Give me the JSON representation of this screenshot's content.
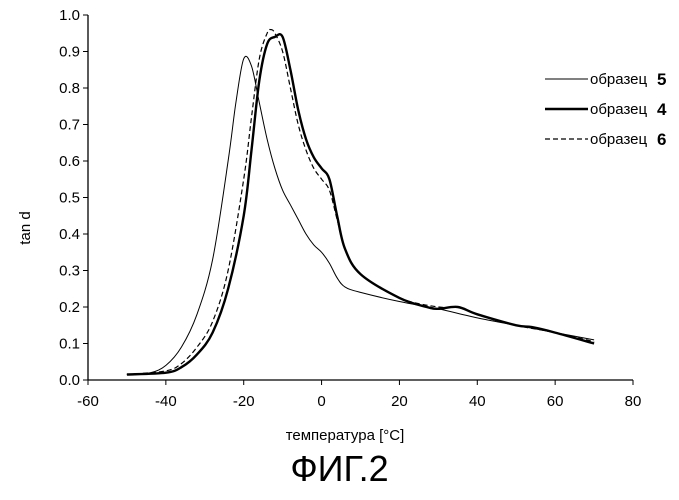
{
  "chart_data": {
    "type": "line",
    "xlabel": "температура [°C]",
    "ylabel": "tan d",
    "xlim": [
      -60,
      80
    ],
    "ylim": [
      0.0,
      1.0
    ],
    "x_ticks": [
      "-60",
      "-40",
      "-20",
      "0",
      "20",
      "40",
      "60",
      "80"
    ],
    "y_ticks": [
      "0.0",
      "0.1",
      "0.2",
      "0.3",
      "0.4",
      "0.5",
      "0.6",
      "0.7",
      "0.8",
      "0.9",
      "1.0"
    ],
    "grid": false,
    "legend_position": "top-right",
    "series": [
      {
        "name": "образец",
        "number": "5",
        "style": "thin",
        "color": "#000000",
        "x": [
          -50,
          -44,
          -40,
          -36,
          -32,
          -28,
          -24,
          -22,
          -20,
          -18,
          -16,
          -14,
          -12,
          -10,
          -8,
          -6,
          -4,
          -2,
          0,
          2,
          4,
          6,
          10,
          20,
          30,
          40,
          50,
          60,
          70
        ],
        "y": [
          0.015,
          0.02,
          0.04,
          0.09,
          0.18,
          0.33,
          0.6,
          0.76,
          0.88,
          0.86,
          0.76,
          0.66,
          0.58,
          0.52,
          0.48,
          0.44,
          0.4,
          0.37,
          0.35,
          0.32,
          0.28,
          0.255,
          0.24,
          0.215,
          0.195,
          0.17,
          0.15,
          0.13,
          0.11
        ]
      },
      {
        "name": "образец",
        "number": "4",
        "style": "thick",
        "color": "#000000",
        "x": [
          -50,
          -40,
          -36,
          -32,
          -28,
          -24,
          -20,
          -18,
          -16,
          -14,
          -12,
          -10,
          -8,
          -6,
          -4,
          -2,
          0,
          2,
          4,
          6,
          10,
          20,
          27,
          30,
          35,
          40,
          50,
          54,
          60,
          70
        ],
        "y": [
          0.015,
          0.02,
          0.035,
          0.07,
          0.13,
          0.25,
          0.45,
          0.63,
          0.82,
          0.92,
          0.94,
          0.94,
          0.85,
          0.74,
          0.66,
          0.61,
          0.58,
          0.55,
          0.45,
          0.36,
          0.29,
          0.225,
          0.2,
          0.195,
          0.2,
          0.18,
          0.15,
          0.145,
          0.13,
          0.1
        ]
      },
      {
        "name": "образец",
        "number": "6",
        "style": "dashed",
        "color": "#000000",
        "x": [
          -50,
          -40,
          -36,
          -32,
          -28,
          -24,
          -20,
          -18,
          -16,
          -14,
          -13,
          -12,
          -10,
          -8,
          -6,
          -4,
          -2,
          0,
          2,
          4,
          6,
          10,
          20,
          30,
          35,
          40,
          50,
          60,
          70
        ],
        "y": [
          0.015,
          0.025,
          0.045,
          0.09,
          0.16,
          0.3,
          0.55,
          0.72,
          0.88,
          0.95,
          0.96,
          0.95,
          0.9,
          0.8,
          0.7,
          0.63,
          0.58,
          0.55,
          0.52,
          0.44,
          0.36,
          0.29,
          0.225,
          0.2,
          0.2,
          0.18,
          0.15,
          0.13,
          0.105
        ]
      }
    ]
  },
  "figure_caption": "ФИГ.2"
}
